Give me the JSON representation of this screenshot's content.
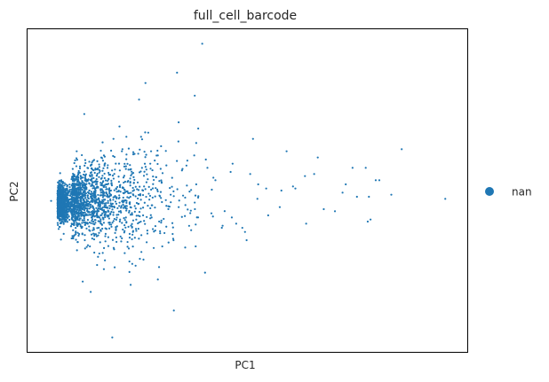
{
  "chart_data": {
    "type": "scatter",
    "title": "full_cell_barcode",
    "xlabel": "PC1",
    "ylabel": "PC2",
    "xlim": [
      -0.5,
      10.5
    ],
    "ylim": [
      -3.6,
      4.2
    ],
    "ticks": "none",
    "grid": false,
    "legend": {
      "placement": "right",
      "entries": [
        {
          "label": "nan",
          "color": "#1f77b4"
        }
      ]
    },
    "series": [
      {
        "color": "#1f77b4",
        "x": [
          3.87,
          9.95,
          2.29,
          4.72,
          4.94,
          1.62,
          1.08,
          3.16,
          0.94,
          2.52,
          2.45,
          3.24,
          0.09,
          3.67,
          1.41,
          5.85,
          8.01,
          6.76,
          8.86,
          8.21,
          8.04,
          7.19,
          6.67,
          5.27,
          5.14,
          4.63,
          4.98,
          4.2,
          4.0,
          3.72,
          3.28,
          3.08,
          2.76,
          2.59,
          1.8,
          1.65,
          1.86,
          2.34,
          2.57,
          1.17,
          1.41,
          2.31,
          2.39,
          1.06,
          1.24,
          0.88,
          2.76,
          0.73,
          4.36,
          0.92,
          7.74,
          8.08,
          4.61,
          6.44,
          6.91,
          7.46,
          8.3,
          5.47,
          8.6,
          7.38,
          3.96,
          7.96,
          5.81,
          4.58,
          6.14,
          5.07,
          5.25,
          5.98,
          3.77,
          3.72,
          4.1,
          4.38,
          6.47,
          3.13,
          2.48,
          2.87,
          2.79,
          7.63,
          5.52,
          6.2
        ],
        "y": [
          3.85,
          0.1,
          2.5,
          -0.5,
          -0.7,
          -3.25,
          -2.15,
          -2.6,
          -1.1,
          1.7,
          2.9,
          3.15,
          0.05,
          1.15,
          1.15,
          0.3,
          -0.45,
          1.1,
          1.3,
          0.55,
          0.15,
          -0.2,
          0.7,
          0.45,
          1.55,
          0.95,
          -0.9,
          0.55,
          0.85,
          1.45,
          1.95,
          0.2,
          1.15,
          1.25,
          1.85,
          1.55,
          1.25,
          1.6,
          0.95,
          -1.2,
          -1.6,
          -1.35,
          0.3,
          -1.05,
          -1.5,
          -1.9,
          -1.85,
          1.25,
          -0.6,
          2.15,
          0.15,
          -0.4,
          -0.35,
          0.65,
          -0.15,
          0.45,
          0.55,
          0.35,
          0.2,
          0.25,
          1.05,
          0.85,
          -0.1,
          0.75,
          0.4,
          0.7,
          0.1,
          1.25,
          1.8,
          0.45,
          -0.25,
          -0.55,
          -0.5,
          -0.75,
          -0.95,
          -1.05,
          -1.55,
          0.85,
          -0.3,
          0.35
        ]
      }
    ],
    "clusters": [
      {
        "center": [
          0.25,
          0.0
        ],
        "spread": [
          0.15,
          0.22
        ],
        "count": 900
      },
      {
        "center": [
          0.6,
          0.05
        ],
        "spread": [
          0.3,
          0.38
        ],
        "count": 700
      },
      {
        "center": [
          1.1,
          0.1
        ],
        "spread": [
          0.55,
          0.55
        ],
        "count": 420
      },
      {
        "center": [
          1.9,
          0.1
        ],
        "spread": [
          0.9,
          0.7
        ],
        "count": 220
      }
    ]
  }
}
